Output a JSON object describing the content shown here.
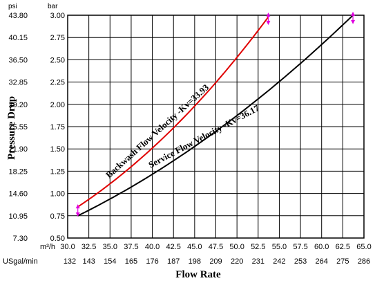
{
  "chart_data": {
    "type": "line",
    "xlabel": "Flow Rate",
    "ylabel": "Pressure Drop",
    "x_unit_primary": "m³/h",
    "x_unit_secondary": "USgal/min",
    "y_unit_left": "psi",
    "y_unit_right": "bar",
    "xlim": [
      30.0,
      65.0
    ],
    "ylim": [
      0.5,
      3.0
    ],
    "x_ticks_primary": [
      "30.0",
      "32.5",
      "35.0",
      "37.5",
      "40.0",
      "42.5",
      "45.0",
      "47.5",
      "50.0",
      "52.5",
      "55.0",
      "57.5",
      "60.0",
      "62.5",
      "65.0"
    ],
    "x_ticks_secondary": [
      "132",
      "143",
      "154",
      "165",
      "176",
      "187",
      "198",
      "209",
      "220",
      "231",
      "242",
      "253",
      "264",
      "275",
      "286"
    ],
    "y_ticks_bar": [
      "3.00",
      "2.75",
      "2.50",
      "2.25",
      "2.00",
      "1.75",
      "1.50",
      "1.25",
      "1.00",
      "0.75",
      "0.50"
    ],
    "y_ticks_psi": [
      "43.80",
      "40.15",
      "36.50",
      "32.85",
      "29.20",
      "25.55",
      "21.90",
      "18.25",
      "14.60",
      "10.95",
      "7.30"
    ],
    "grid": true,
    "series": [
      {
        "name": "Backwash Flow Velocity -Kv=33.93",
        "color": "#e00000",
        "x": [
          31.2,
          53.7
        ],
        "y": [
          0.85,
          2.98
        ]
      },
      {
        "name": "Service Flow Velocity -Kv=36.17",
        "color": "#000000",
        "x": [
          31.2,
          63.7
        ],
        "y": [
          0.75,
          3.0
        ]
      }
    ],
    "markers": [
      {
        "x": 31.2,
        "y": 0.81,
        "color": "#e000e0"
      },
      {
        "x": 53.7,
        "y": 2.96,
        "color": "#e000e0"
      },
      {
        "x": 63.7,
        "y": 2.97,
        "color": "#e000e0"
      }
    ]
  }
}
